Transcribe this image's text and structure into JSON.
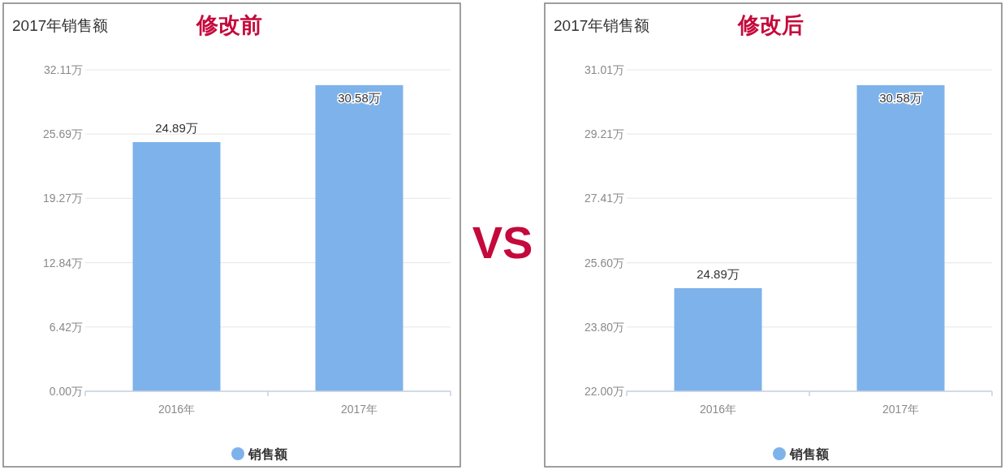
{
  "chart_data": [
    {
      "type": "bar",
      "title": "2017年销售额",
      "subtitle": "修改前",
      "categories": [
        "2016年",
        "2017年"
      ],
      "series": [
        {
          "name": "销售额",
          "color": "#7eb2ea",
          "values": [
            24.89,
            30.58
          ],
          "value_labels": [
            "24.89万",
            "30.58万"
          ]
        }
      ],
      "ylim": [
        0,
        32.11
      ],
      "yticks": [
        {
          "value": 0,
          "label": "0.00万"
        },
        {
          "value": 6.42,
          "label": "6.42万"
        },
        {
          "value": 12.84,
          "label": "12.84万"
        },
        {
          "value": 19.27,
          "label": "19.27万"
        },
        {
          "value": 25.69,
          "label": "25.69万"
        },
        {
          "value": 32.11,
          "label": "32.11万"
        }
      ],
      "grid": "y",
      "legend": "bottom"
    },
    {
      "type": "other",
      "annotations": [
        "VS"
      ]
    },
    {
      "type": "bar",
      "title": "2017年销售额",
      "subtitle": "修改后",
      "categories": [
        "2016年",
        "2017年"
      ],
      "series": [
        {
          "name": "销售额",
          "color": "#7eb2ea",
          "values": [
            24.89,
            30.58
          ],
          "value_labels": [
            "24.89万",
            "30.58万"
          ]
        }
      ],
      "ylim": [
        22,
        31.01
      ],
      "yticks": [
        {
          "value": 22,
          "label": "22.00万"
        },
        {
          "value": 23.8,
          "label": "23.80万"
        },
        {
          "value": 25.6,
          "label": "25.60万"
        },
        {
          "value": 27.41,
          "label": "27.41万"
        },
        {
          "value": 29.21,
          "label": "29.21万"
        },
        {
          "value": 31.01,
          "label": "31.01万"
        }
      ],
      "grid": "y",
      "legend": "bottom"
    }
  ]
}
